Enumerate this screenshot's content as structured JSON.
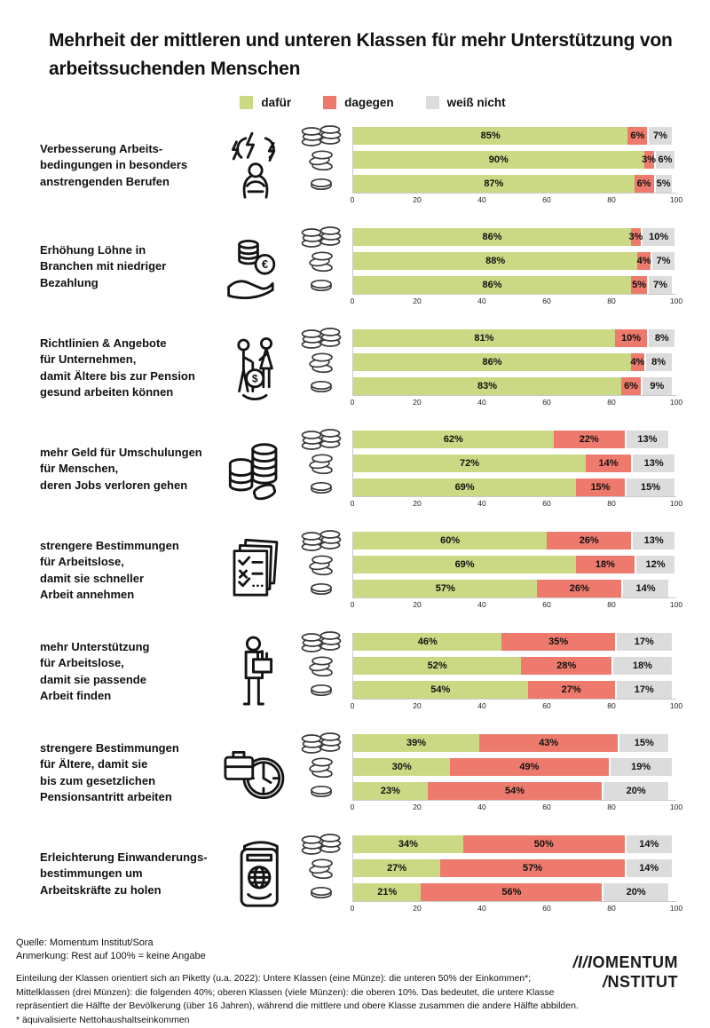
{
  "title": "Mehrheit der mittleren und unteren Klassen für mehr Unterstützung von arbeitssuchenden Menschen",
  "legend": {
    "items": [
      {
        "label": "dafür",
        "color": "#cbd984"
      },
      {
        "label": "dagegen",
        "color": "#ee7a6d"
      },
      {
        "label": "weiß nicht",
        "color": "#dcdcdc"
      }
    ]
  },
  "chart_data": {
    "type": "bar",
    "stacked": true,
    "orientation": "horizontal",
    "unit": "percent",
    "x_range": [
      0,
      100
    ],
    "ticks": [
      0,
      20,
      40,
      60,
      80,
      100
    ],
    "series_names": [
      "dafür",
      "dagegen",
      "weiß nicht"
    ],
    "colors": {
      "dafur": "#cbd984",
      "dagegen": "#ee7a6d",
      "weiss_nicht": "#dcdcdc"
    },
    "row_classes": [
      {
        "name": "obere Klasse (viele Münzen)",
        "coin": "many"
      },
      {
        "name": "Mittelklasse (drei Münzen)",
        "coin": "three"
      },
      {
        "name": "untere Klasse (eine Münze)",
        "coin": "one"
      }
    ],
    "groups": [
      {
        "icon": "stress-icon",
        "label_lines": [
          "Verbesserung Arbeits-",
          "bedingungen in besonders",
          "anstrengenden Berufen"
        ],
        "rows": [
          [
            85,
            6,
            7
          ],
          [
            90,
            3,
            6
          ],
          [
            87,
            6,
            5
          ]
        ]
      },
      {
        "icon": "wage-icon",
        "label_lines": [
          "Erhöhung Löhne in",
          "Branchen mit niedriger",
          "Bezahlung"
        ],
        "rows": [
          [
            86,
            3,
            10
          ],
          [
            88,
            4,
            7
          ],
          [
            86,
            5,
            7
          ]
        ]
      },
      {
        "icon": "elderly-icon",
        "label_lines": [
          "Richtlinien & Angebote",
          "für Unternehmen,",
          "damit Ältere bis zur Pension",
          "gesund arbeiten können"
        ],
        "rows": [
          [
            81,
            10,
            8
          ],
          [
            86,
            4,
            8
          ],
          [
            83,
            6,
            9
          ]
        ]
      },
      {
        "icon": "coins-icon",
        "label_lines": [
          "mehr Geld für Umschulungen",
          "für Menschen,",
          "deren Jobs verloren gehen"
        ],
        "rows": [
          [
            62,
            22,
            13
          ],
          [
            72,
            14,
            13
          ],
          [
            69,
            15,
            15
          ]
        ]
      },
      {
        "icon": "checklist-icon",
        "label_lines": [
          "strengere Bestimmungen",
          "für Arbeitslose,",
          "damit sie schneller",
          "Arbeit annehmen"
        ],
        "rows": [
          [
            60,
            26,
            13
          ],
          [
            69,
            18,
            12
          ],
          [
            57,
            26,
            14
          ]
        ]
      },
      {
        "icon": "jobsearch-icon",
        "label_lines": [
          "mehr Unterstützung",
          "für Arbeitslose,",
          "damit sie passende",
          "Arbeit finden"
        ],
        "rows": [
          [
            46,
            35,
            17
          ],
          [
            52,
            28,
            18
          ],
          [
            54,
            27,
            17
          ]
        ]
      },
      {
        "icon": "worktime-icon",
        "label_lines": [
          "strengere Bestimmungen",
          "für Ältere, damit sie",
          "bis zum gesetzlichen",
          "Pensionsantritt arbeiten"
        ],
        "rows": [
          [
            39,
            43,
            15
          ],
          [
            30,
            49,
            19
          ],
          [
            23,
            54,
            20
          ]
        ]
      },
      {
        "icon": "passport-icon",
        "label_lines": [
          "Erleichterung Einwanderungs-",
          "bestimmungen um",
          "Arbeitskräfte zu holen"
        ],
        "rows": [
          [
            34,
            50,
            14
          ],
          [
            27,
            57,
            14
          ],
          [
            21,
            56,
            20
          ]
        ]
      }
    ]
  },
  "footer": {
    "quelle": "Quelle: Momentum Institut/Sora",
    "anmerkung": "Anmerkung: Rest auf 100% = keine Angabe",
    "note_lines": [
      "Einteilung der Klassen orientiert sich an Piketty (u.a. 2022): Untere Klassen (eine Münze): die unteren 50% der Einkommen*;",
      "Mittelklassen (drei Münzen): die folgenden 40%; oberen Klassen (viele Münzen): die oberen 10%. Das bedeutet, die untere Klasse",
      "repräsentiert die Hälfte der Bevölkerung (über 16 Jahren), während die mittlere und obere Klasse zusammen die andere Hälfte abbilden."
    ],
    "asterisk": "* äquivalisierte Nettohaushaltseinkommen"
  },
  "logo": {
    "m_prefix": "/I/I",
    "line1_rest": "OMENTUM",
    "i_prefix": "/",
    "line2_rest": "NSTITUT"
  }
}
